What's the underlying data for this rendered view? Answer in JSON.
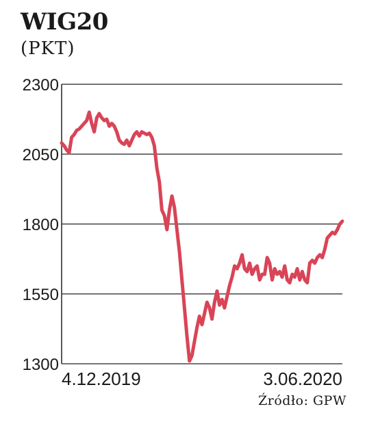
{
  "title": "WIG20",
  "subtitle": "(PKT)",
  "source": "Źródło: GPW",
  "chart_data": {
    "type": "line",
    "title": "WIG20",
    "ylabel": "(PKT)",
    "ylim": [
      1300,
      2300
    ],
    "yticks": [
      2300,
      2050,
      1800,
      1550,
      1300
    ],
    "x_labels": [
      "4.12.2019",
      "3.06.2020"
    ],
    "grid": true,
    "line_color": "#d94457",
    "series": [
      {
        "values": [
          2090,
          2080,
          2065,
          2055,
          2110,
          2120,
          2135,
          2140,
          2150,
          2160,
          2170,
          2200,
          2160,
          2130,
          2180,
          2195,
          2180,
          2170,
          2175,
          2150,
          2160,
          2150,
          2130,
          2100,
          2090,
          2085,
          2100,
          2080,
          2100,
          2120,
          2130,
          2115,
          2130,
          2125,
          2120,
          2125,
          2110,
          2080,
          2000,
          1950,
          1850,
          1830,
          1780,
          1850,
          1900,
          1860,
          1780,
          1700,
          1600,
          1500,
          1400,
          1310,
          1330,
          1380,
          1430,
          1470,
          1440,
          1480,
          1520,
          1500,
          1460,
          1520,
          1560,
          1510,
          1530,
          1500,
          1540,
          1580,
          1610,
          1650,
          1640,
          1660,
          1690,
          1640,
          1630,
          1660,
          1620,
          1640,
          1650,
          1600,
          1620,
          1620,
          1680,
          1660,
          1600,
          1640,
          1620,
          1630,
          1610,
          1650,
          1600,
          1590,
          1620,
          1610,
          1640,
          1600,
          1630,
          1600,
          1590,
          1660,
          1670,
          1660,
          1680,
          1690,
          1680,
          1710,
          1750,
          1760,
          1770,
          1765,
          1780,
          1800,
          1810
        ]
      }
    ]
  }
}
